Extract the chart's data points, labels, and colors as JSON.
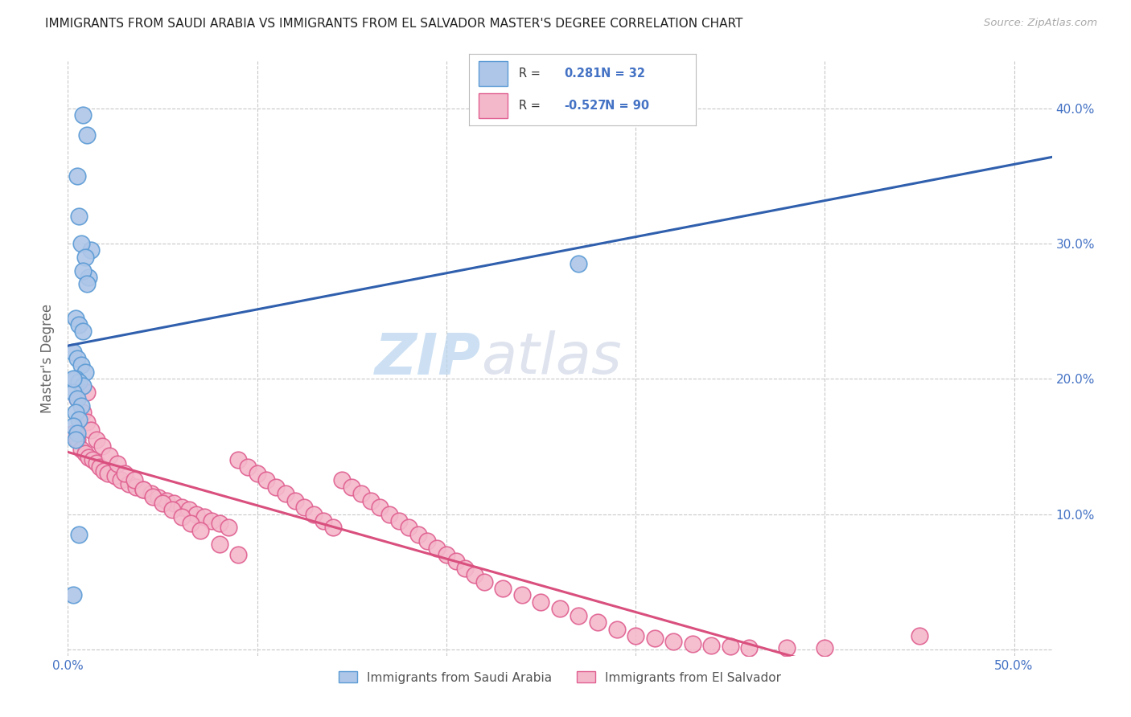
{
  "title": "IMMIGRANTS FROM SAUDI ARABIA VS IMMIGRANTS FROM EL SALVADOR MASTER'S DEGREE CORRELATION CHART",
  "source": "Source: ZipAtlas.com",
  "ylabel": "Master's Degree",
  "xlim": [
    0.0,
    0.52
  ],
  "ylim": [
    -0.005,
    0.435
  ],
  "saudi_color": "#aec6e8",
  "saudi_edge_color": "#5b9bd5",
  "salvador_color": "#f4b8cb",
  "salvador_edge_color": "#e06090",
  "saudi_line_color": "#2f5fad",
  "salvador_line_color": "#d94f7e",
  "R_saudi": 0.281,
  "N_saudi": 32,
  "R_salvador": -0.527,
  "N_salvador": 90,
  "legend_label_saudi": "Immigrants from Saudi Arabia",
  "legend_label_salvador": "Immigrants from El Salvador",
  "background_color": "#ffffff",
  "grid_color": "#c8c8c8",
  "title_color": "#222222",
  "tick_color": "#4472C4",
  "watermark_color": "#ddeeff",
  "saudi_x": [
    0.008,
    0.01,
    0.012,
    0.005,
    0.007,
    0.009,
    0.011,
    0.006,
    0.008,
    0.01,
    0.004,
    0.006,
    0.008,
    0.003,
    0.005,
    0.007,
    0.009,
    0.004,
    0.006,
    0.008,
    0.003,
    0.005,
    0.007,
    0.004,
    0.006,
    0.003,
    0.005,
    0.004,
    0.006,
    0.003,
    0.27,
    0.003
  ],
  "saudi_y": [
    0.395,
    0.38,
    0.295,
    0.35,
    0.3,
    0.29,
    0.275,
    0.32,
    0.28,
    0.27,
    0.245,
    0.24,
    0.235,
    0.22,
    0.215,
    0.21,
    0.205,
    0.2,
    0.198,
    0.195,
    0.19,
    0.185,
    0.18,
    0.175,
    0.17,
    0.165,
    0.16,
    0.155,
    0.085,
    0.04,
    0.285,
    0.2
  ],
  "salvador_x": [
    0.003,
    0.005,
    0.007,
    0.009,
    0.011,
    0.013,
    0.015,
    0.017,
    0.019,
    0.021,
    0.025,
    0.028,
    0.032,
    0.036,
    0.04,
    0.044,
    0.048,
    0.052,
    0.056,
    0.06,
    0.064,
    0.068,
    0.072,
    0.076,
    0.08,
    0.085,
    0.09,
    0.095,
    0.1,
    0.105,
    0.11,
    0.115,
    0.12,
    0.125,
    0.13,
    0.135,
    0.14,
    0.145,
    0.15,
    0.155,
    0.16,
    0.165,
    0.17,
    0.175,
    0.18,
    0.185,
    0.19,
    0.195,
    0.2,
    0.205,
    0.21,
    0.215,
    0.22,
    0.23,
    0.24,
    0.25,
    0.26,
    0.27,
    0.28,
    0.29,
    0.3,
    0.31,
    0.32,
    0.33,
    0.34,
    0.35,
    0.36,
    0.38,
    0.4,
    0.45,
    0.005,
    0.008,
    0.01,
    0.012,
    0.015,
    0.018,
    0.022,
    0.026,
    0.03,
    0.035,
    0.04,
    0.045,
    0.05,
    0.055,
    0.06,
    0.065,
    0.07,
    0.08,
    0.09,
    0.01
  ],
  "salvador_y": [
    0.16,
    0.155,
    0.148,
    0.145,
    0.142,
    0.14,
    0.138,
    0.135,
    0.132,
    0.13,
    0.128,
    0.125,
    0.122,
    0.12,
    0.118,
    0.115,
    0.112,
    0.11,
    0.108,
    0.105,
    0.103,
    0.1,
    0.098,
    0.095,
    0.093,
    0.09,
    0.14,
    0.135,
    0.13,
    0.125,
    0.12,
    0.115,
    0.11,
    0.105,
    0.1,
    0.095,
    0.09,
    0.125,
    0.12,
    0.115,
    0.11,
    0.105,
    0.1,
    0.095,
    0.09,
    0.085,
    0.08,
    0.075,
    0.07,
    0.065,
    0.06,
    0.055,
    0.05,
    0.045,
    0.04,
    0.035,
    0.03,
    0.025,
    0.02,
    0.015,
    0.01,
    0.008,
    0.006,
    0.004,
    0.003,
    0.002,
    0.001,
    0.001,
    0.001,
    0.01,
    0.185,
    0.175,
    0.168,
    0.162,
    0.155,
    0.15,
    0.143,
    0.137,
    0.13,
    0.125,
    0.118,
    0.113,
    0.108,
    0.103,
    0.098,
    0.093,
    0.088,
    0.078,
    0.07,
    0.19
  ]
}
